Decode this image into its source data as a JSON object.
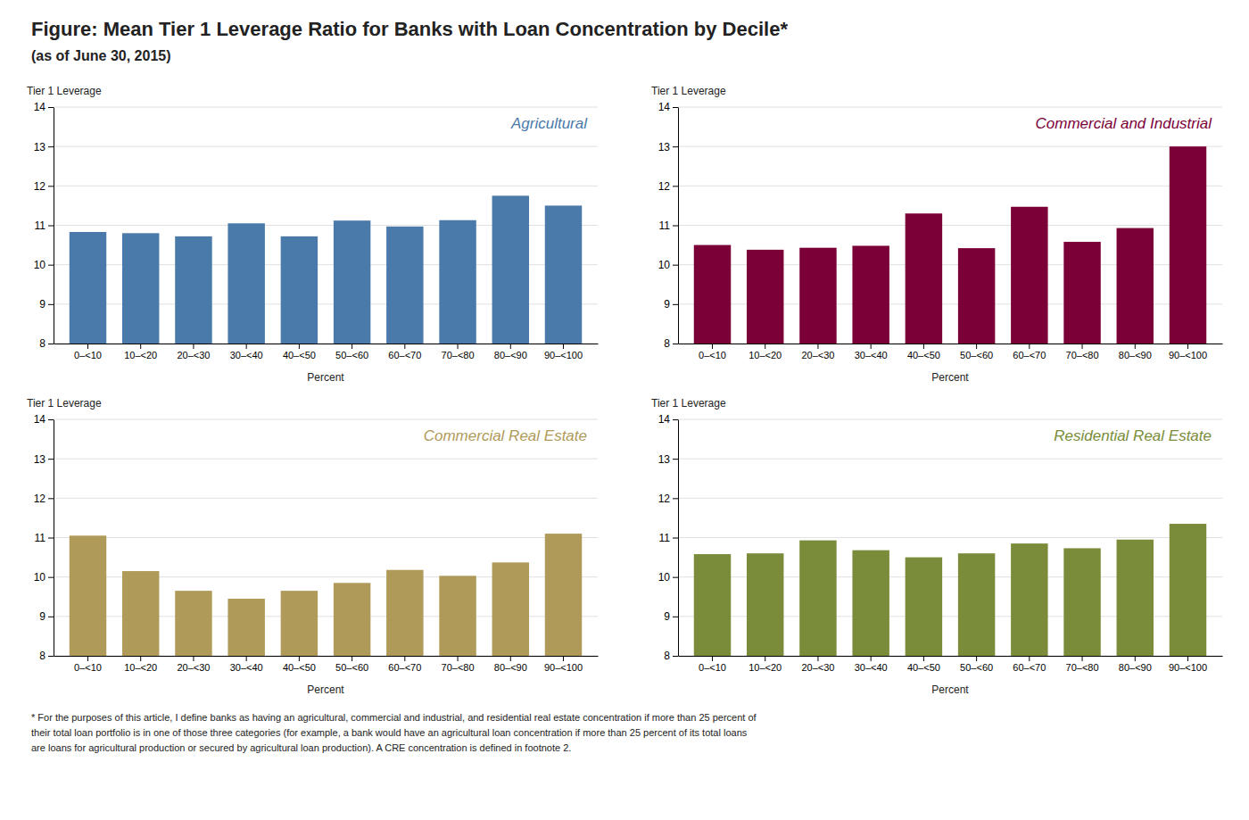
{
  "title": "Figure: Mean Tier 1 Leverage Ratio for Banks with Loan Concentration by Decile*",
  "subtitle": "(as of June 30, 2015)",
  "footnote": "* For the purposes of this article, I define banks as having an agricultural, commercial and industrial, and residential real estate concentration if more than 25 percent of\ntheir total loan portfolio is in one of those three categories (for example, a bank would have an agricultural loan concentration if more than 25 percent of its total loans\nare loans for agricultural production or secured by agricultural loan production). A CRE concentration is defined in footnote 2.",
  "chart_data": [
    {
      "type": "bar",
      "title": "Agricultural",
      "categories": [
        "0–<10",
        "10–<20",
        "20–<30",
        "30–<40",
        "40–<50",
        "50–<60",
        "60–<70",
        "70–<80",
        "80–<90",
        "90–<100"
      ],
      "values": [
        10.83,
        10.8,
        10.72,
        11.05,
        10.72,
        11.12,
        10.97,
        11.13,
        11.75,
        11.5
      ],
      "color": "#4a7aaa",
      "xlabel": "Percent",
      "ylabel": "Tier 1 Leverage",
      "ylim": [
        8,
        14
      ],
      "yticks": [
        8,
        9,
        10,
        11,
        12,
        13,
        14
      ],
      "grid": true
    },
    {
      "type": "bar",
      "title": "Commercial and Industrial",
      "categories": [
        "0–<10",
        "10–<20",
        "20–<30",
        "30–<40",
        "40–<50",
        "50–<60",
        "60–<70",
        "70–<80",
        "80–<90",
        "90–<100"
      ],
      "values": [
        10.5,
        10.38,
        10.43,
        10.48,
        11.3,
        10.42,
        11.47,
        10.58,
        10.93,
        13.0
      ],
      "color": "#7b0038",
      "xlabel": "Percent",
      "ylabel": "Tier 1 Leverage",
      "ylim": [
        8,
        14
      ],
      "yticks": [
        8,
        9,
        10,
        11,
        12,
        13,
        14
      ],
      "grid": true
    },
    {
      "type": "bar",
      "title": "Commercial Real Estate",
      "categories": [
        "0–<10",
        "10–<20",
        "20–<30",
        "30–<40",
        "40–<50",
        "50–<60",
        "60–<70",
        "70–<80",
        "80–<90",
        "90–<100"
      ],
      "values": [
        11.05,
        10.15,
        9.65,
        9.45,
        9.65,
        9.85,
        10.18,
        10.03,
        10.37,
        11.1
      ],
      "color": "#b09a5a",
      "xlabel": "Percent",
      "ylabel": "Tier 1 Leverage",
      "ylim": [
        8,
        14
      ],
      "yticks": [
        8,
        9,
        10,
        11,
        12,
        13,
        14
      ],
      "grid": true
    },
    {
      "type": "bar",
      "title": "Residential Real Estate",
      "categories": [
        "0–<10",
        "10–<20",
        "20–<30",
        "30–<40",
        "40–<50",
        "50–<60",
        "60–<70",
        "70–<80",
        "80–<90",
        "90–<100"
      ],
      "values": [
        10.58,
        10.6,
        10.93,
        10.68,
        10.5,
        10.6,
        10.85,
        10.73,
        10.95,
        11.35
      ],
      "color": "#7a8c3a",
      "xlabel": "Percent",
      "ylabel": "Tier 1 Leverage",
      "ylim": [
        8,
        14
      ],
      "yticks": [
        8,
        9,
        10,
        11,
        12,
        13,
        14
      ],
      "grid": true
    }
  ]
}
